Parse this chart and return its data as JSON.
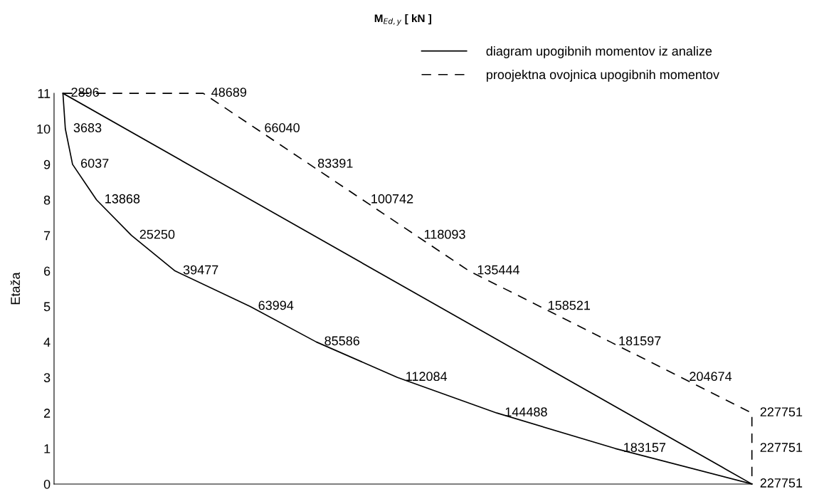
{
  "chart_data": {
    "type": "line",
    "orientation": "horizontal",
    "title": "M$_{Ed,y}$ [ kN ]",
    "ylabel": "Etaža",
    "xlim": [
      0,
      227751
    ],
    "ylim": [
      0,
      11
    ],
    "yticks": [
      0,
      1,
      2,
      3,
      4,
      5,
      6,
      7,
      8,
      9,
      10,
      11
    ],
    "tick_labels": "y",
    "grid": false,
    "legend": "top right",
    "marker": "none",
    "series": [
      {
        "name": "diagram upogibnih momentov iz analize",
        "color": "#000000",
        "line_style": "solid",
        "x": [
          11,
          10,
          9,
          8,
          7,
          6,
          5,
          4,
          3,
          2,
          1,
          0
        ],
        "values": [
          2896,
          3683,
          6037,
          13868,
          25250,
          39477,
          63994,
          85586,
          112084,
          144488,
          183157,
          227751
        ],
        "value_labels": [
          "2896",
          "3683",
          "6037",
          "13868",
          "25250",
          "39477",
          "63994",
          "85586",
          "112084",
          "144488",
          "183157",
          null
        ]
      },
      {
        "color": "#000000",
        "line_style": "solid",
        "x": [
          11,
          0
        ],
        "values": [
          2896,
          227751
        ]
      },
      {
        "name": "proojektna ovojnica upogibnih momentov",
        "color": "#000000",
        "line_style": "dashed",
        "x": [
          11,
          11,
          10,
          9,
          8,
          7,
          6,
          5,
          4,
          3,
          2,
          1,
          0
        ],
        "values": [
          2896,
          48689,
          66040,
          83391,
          100742,
          118093,
          135444,
          158521,
          181597,
          204674,
          227751,
          227751,
          227751
        ],
        "value_labels": [
          null,
          "48689",
          "66040",
          "83391",
          "100742",
          "118093",
          "135444",
          "158521",
          "181597",
          "204674",
          "227751",
          "227751",
          "227751"
        ]
      }
    ]
  }
}
